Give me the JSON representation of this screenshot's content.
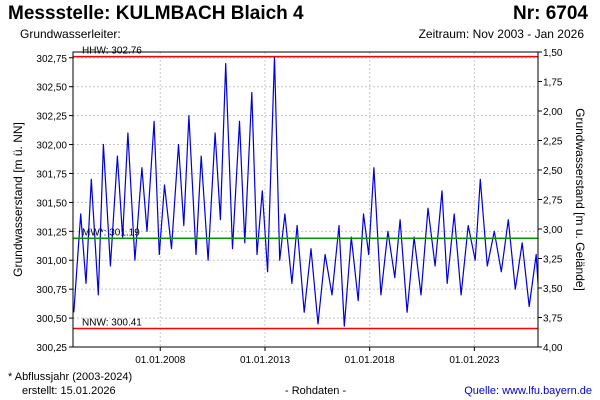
{
  "header": {
    "title": "Messstelle: KULMBACH Blaich 4",
    "number": "Nr: 6704",
    "aquifer": "Grundwasserleiter:",
    "period": "Zeitraum: Nov 2003 - Jan 2026"
  },
  "footer": {
    "note": "* Abflussjahr (2003-2024)",
    "created": "erstellt:  15.01.2026",
    "raw": "- Rohdaten -",
    "source": "Quelle: www.lfu.bayern.de"
  },
  "colors": {
    "series": "#0000dd",
    "extremes": "#ff0000",
    "mean": "#009900",
    "grid": "#c8c8c8"
  },
  "chart_data": {
    "type": "line",
    "ylabel_left": "Grundwasserstand [m ü. NN]",
    "ylabel_right": "Grundwasserstand [m u. Gelände]",
    "ylim_left": [
      300.25,
      302.8
    ],
    "ylim_right": [
      4.0,
      1.5
    ],
    "yticks_left": [
      "302,75",
      "302,50",
      "302,25",
      "302,00",
      "301,75",
      "301,50",
      "301,25",
      "301,00",
      "300,75",
      "300,50",
      "300,25"
    ],
    "yticks_right": [
      "1,50",
      "1,75",
      "2,00",
      "2,25",
      "2,50",
      "2,75",
      "3,00",
      "3,25",
      "3,50",
      "3,75",
      "4,00"
    ],
    "xlim": [
      "2003-11-01",
      "2026-01-15"
    ],
    "xticks": [
      "01.01.2008",
      "01.01.2013",
      "01.01.2018",
      "01.01.2023"
    ],
    "grid": true,
    "reference_lines": [
      {
        "label": "HHW: 302.76",
        "value": 302.76
      },
      {
        "label": "MW*: 301.19",
        "value": 301.19
      },
      {
        "label": "NNW: 300.41",
        "value": 300.41
      }
    ],
    "series": [
      {
        "x": [
          "2003-11",
          "2004-03",
          "2004-06",
          "2004-09",
          "2005-01",
          "2005-04",
          "2005-08",
          "2005-12",
          "2006-03",
          "2006-06",
          "2006-10",
          "2007-02",
          "2007-05",
          "2007-09",
          "2007-12",
          "2008-03",
          "2008-07",
          "2008-11",
          "2009-02",
          "2009-05",
          "2009-09",
          "2009-12",
          "2010-04",
          "2010-08",
          "2010-11",
          "2011-02",
          "2011-06",
          "2011-10",
          "2012-01",
          "2012-05",
          "2012-08",
          "2012-11",
          "2013-02",
          "2013-06",
          "2013-09",
          "2013-12",
          "2014-04",
          "2014-07",
          "2014-11",
          "2015-03",
          "2015-07",
          "2015-11",
          "2016-03",
          "2016-07",
          "2016-10",
          "2017-02",
          "2017-06",
          "2017-09",
          "2017-12",
          "2018-03",
          "2018-07",
          "2018-11",
          "2019-03",
          "2019-06",
          "2019-10",
          "2020-02",
          "2020-06",
          "2020-10",
          "2021-02",
          "2021-06",
          "2021-09",
          "2022-01",
          "2022-05",
          "2022-09",
          "2023-01",
          "2023-04",
          "2023-08",
          "2023-12",
          "2024-04",
          "2024-08",
          "2024-12",
          "2025-04",
          "2025-08",
          "2025-12",
          "2026-01"
        ],
        "y": [
          300.55,
          301.4,
          300.8,
          301.7,
          300.7,
          302.0,
          300.95,
          301.9,
          301.2,
          302.1,
          301.0,
          301.8,
          301.25,
          302.2,
          301.05,
          301.65,
          301.1,
          302.0,
          301.3,
          302.25,
          301.05,
          301.9,
          301.0,
          302.1,
          301.35,
          302.7,
          301.1,
          302.2,
          301.15,
          302.45,
          301.05,
          301.6,
          300.9,
          302.76,
          301.0,
          301.4,
          300.8,
          301.3,
          300.55,
          301.1,
          300.45,
          301.05,
          300.7,
          301.3,
          300.43,
          301.2,
          300.65,
          301.4,
          301.05,
          301.8,
          300.7,
          301.25,
          300.85,
          301.35,
          300.55,
          301.2,
          300.7,
          301.45,
          300.95,
          301.6,
          300.8,
          301.4,
          300.7,
          301.3,
          301.0,
          301.7,
          300.95,
          301.25,
          300.9,
          301.35,
          300.75,
          301.15,
          300.6,
          301.05,
          300.8
        ]
      }
    ]
  }
}
